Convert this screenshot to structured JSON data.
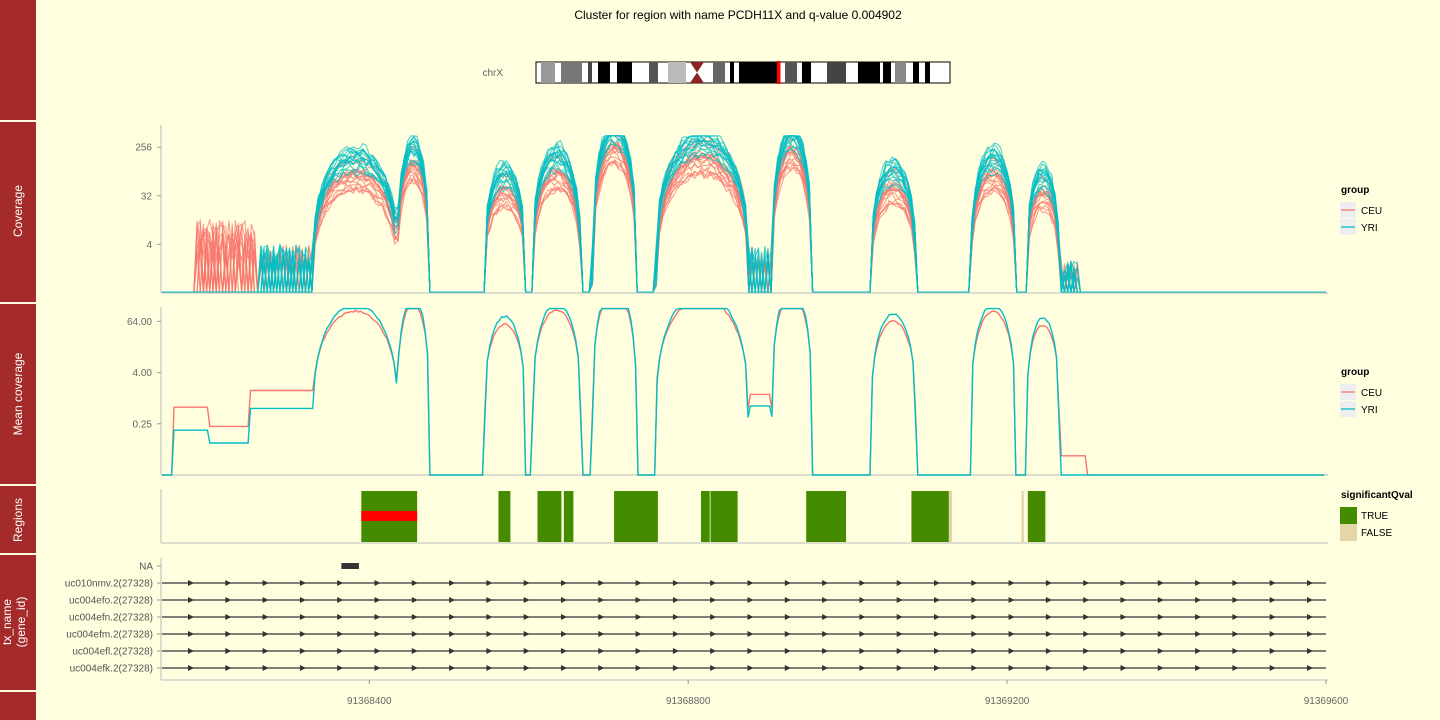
{
  "title": "Cluster for region with name PCDH11X and q-value 0.004902",
  "ideogram": {
    "chrom_label": "chrX"
  },
  "strip_labels": [
    "",
    "Coverage",
    "Mean coverage",
    "Regions",
    "tx_name\n(gene_id)"
  ],
  "colors": {
    "strip": "#a52a2a",
    "bg": "#ffffe0",
    "ceu": "#f8766d",
    "yri": "#00bfc4",
    "sig_true": "#458b00",
    "sig_false": "#e6d5a8",
    "highlight": "#ff0000",
    "gene": "#333333"
  },
  "x_axis": {
    "range": [
      91368140,
      91369600
    ],
    "ticks": [
      91368400,
      91368800,
      91369200,
      91369600
    ],
    "tick_labels": [
      "91368400",
      "91368800",
      "91369200",
      "91369600"
    ]
  },
  "legends": {
    "coverage": {
      "title": "group",
      "items": [
        "CEU",
        "YRI"
      ]
    },
    "mean": {
      "title": "group",
      "items": [
        "CEU",
        "YRI"
      ]
    },
    "regions": {
      "title": "significantQval",
      "items": [
        "TRUE",
        "FALSE"
      ]
    }
  },
  "chart_data": [
    {
      "type": "line",
      "panel": "Coverage",
      "y_scale": "log2",
      "y_ticks": [
        4,
        32,
        256
      ],
      "y_tick_labels": [
        "4",
        "32",
        "256"
      ],
      "note_series": "many per-sample lines grouped by CEU / YRI",
      "exons": [
        [
          91368330,
          91368435
        ],
        [
          91368435,
          91368475
        ],
        [
          91368545,
          91368595
        ],
        [
          91368605,
          91368665
        ],
        [
          91368680,
          91368735
        ],
        [
          91368760,
          91368875
        ],
        [
          91368905,
          91368955
        ],
        [
          91369030,
          91369085
        ],
        [
          91369155,
          91369210
        ],
        [
          91369225,
          91369265
        ]
      ]
    },
    {
      "type": "line",
      "panel": "Mean coverage",
      "y_scale": "log2",
      "y_ticks": [
        0.25,
        4,
        64
      ],
      "y_tick_labels": [
        "0.25",
        "4.00",
        "64.00"
      ],
      "series": [
        {
          "name": "CEU",
          "color": "#f8766d"
        },
        {
          "name": "YRI",
          "color": "#00bfc4"
        }
      ]
    },
    {
      "type": "bar",
      "panel": "Regions",
      "regions": [
        {
          "start": 91368390,
          "end": 91368460,
          "sig": "TRUE",
          "highlight": true
        },
        {
          "start": 91368562,
          "end": 91368577,
          "sig": "TRUE"
        },
        {
          "start": 91368611,
          "end": 91368641,
          "sig": "TRUE"
        },
        {
          "start": 91368644,
          "end": 91368656,
          "sig": "TRUE"
        },
        {
          "start": 91368707,
          "end": 91368762,
          "sig": "TRUE"
        },
        {
          "start": 91368816,
          "end": 91368827,
          "sig": "TRUE"
        },
        {
          "start": 91368828,
          "end": 91368862,
          "sig": "TRUE"
        },
        {
          "start": 91368948,
          "end": 91368998,
          "sig": "TRUE"
        },
        {
          "start": 91369080,
          "end": 91369127,
          "sig": "TRUE"
        },
        {
          "start": 91369127,
          "end": 91369131,
          "sig": "FALSE"
        },
        {
          "start": 91369218,
          "end": 91369221,
          "sig": "FALSE"
        },
        {
          "start": 91369226,
          "end": 91369248,
          "sig": "TRUE"
        }
      ]
    },
    {
      "type": "table",
      "panel": "tx_name (gene_id)",
      "rows": [
        "NA",
        "uc010nmv.2(27328)",
        "uc004efo.2(27328)",
        "uc004efn.2(27328)",
        "uc004efm.2(27328)",
        "uc004efl.2(27328)",
        "uc004efk.2(27328)"
      ],
      "na_segment": [
        91368365,
        91368387
      ]
    }
  ]
}
